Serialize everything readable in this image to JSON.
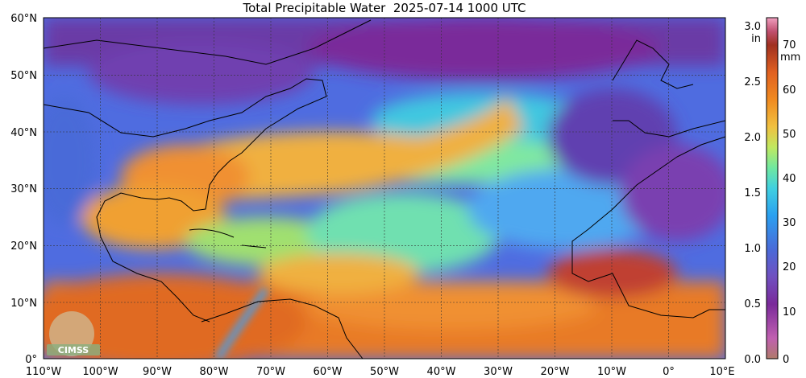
{
  "title": "Total Precipitable Water  2025-07-14 1000 UTC",
  "logo_text": "CIMSS",
  "lat_labels": [
    "60°N",
    "50°N",
    "40°N",
    "30°N",
    "20°N",
    "10°N",
    "0°"
  ],
  "lon_labels": [
    "110°W",
    "100°W",
    "90°W",
    "80°W",
    "70°W",
    "60°W",
    "50°W",
    "40°W",
    "30°W",
    "20°W",
    "10°W",
    "0°",
    "10°E"
  ],
  "colorbar": {
    "inch_unit": "in",
    "mm_unit": "mm",
    "inch_ticks": [
      "3.0",
      "2.5",
      "2.0",
      "1.5",
      "1.0",
      "0.5",
      "0.0"
    ],
    "mm_ticks": [
      "70",
      "60",
      "50",
      "40",
      "30",
      "20",
      "10",
      "0"
    ],
    "inch_values": [
      3.0,
      2.5,
      2.0,
      1.5,
      1.0,
      0.5,
      0.0
    ],
    "mm_values": [
      70,
      60,
      50,
      40,
      30,
      20,
      10,
      0
    ],
    "range_in": [
      0,
      3.1
    ],
    "colors": [
      "#b07a6a",
      "#c060b0",
      "#7a2a9a",
      "#7050c0",
      "#4a6ad8",
      "#2aa0f0",
      "#40d0e0",
      "#70e8a0",
      "#c0e860",
      "#f0c040",
      "#f08a20",
      "#e06020",
      "#a03020",
      "#c05070",
      "#f0a0c0"
    ]
  },
  "map": {
    "background": "#4f6ce0",
    "land_line_color": "#000000",
    "grid_color": "#333333"
  }
}
